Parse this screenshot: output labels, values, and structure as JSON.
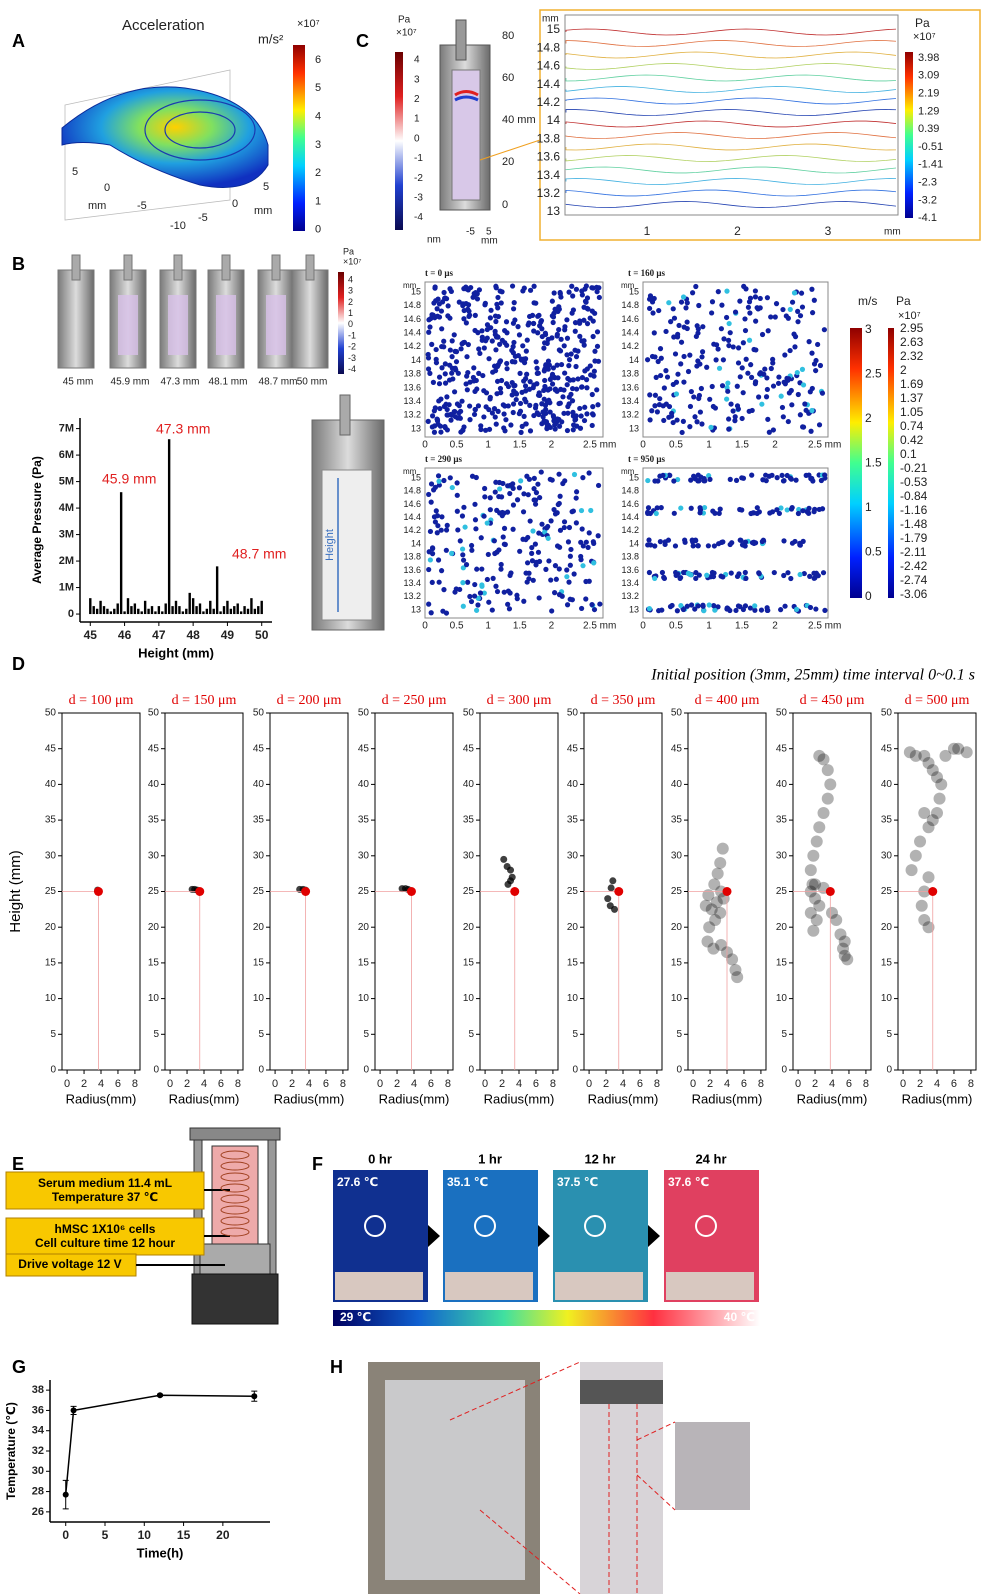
{
  "panel_labels": [
    "A",
    "B",
    "C",
    "D",
    "E",
    "F",
    "G",
    "H"
  ],
  "panel_a": {
    "title": "Acceleration",
    "unit": "m/s²",
    "scale": "×10⁷",
    "colorbar_ticks": [
      6,
      5,
      4,
      3,
      2,
      1,
      0
    ],
    "axis_labels": [
      "5",
      "0",
      "-5",
      "mm",
      "-10",
      "-5",
      "0",
      "5",
      "mm"
    ]
  },
  "panel_b": {
    "positions": [
      "45 mm",
      "45.9 mm",
      "47.3 mm",
      "48.1 mm",
      "48.7 mm",
      "50 mm"
    ],
    "cb_unit": "Pa",
    "cb_scale": "×10⁷",
    "cb_ticks": [
      4,
      3,
      2,
      1,
      0,
      -1,
      -2,
      -3,
      -4
    ],
    "diagram_label": "Height",
    "snapshot_times": [
      "t = 0 μs",
      "t = 160 μs",
      "t = 290 μs",
      "t = 950 μs"
    ],
    "snapshot_yunit": "mm",
    "snapshot_yticks": [
      15,
      14.8,
      14.6,
      14.4,
      14.2,
      14,
      13.8,
      13.6,
      13.4,
      13.2,
      13
    ],
    "snapshot_xticks": [
      0,
      0.5,
      1,
      1.5,
      2,
      "2.5 mm"
    ],
    "velocity_unit": "m/s",
    "velocity_ticks": [
      3,
      2.5,
      2,
      1.5,
      1,
      0.5,
      0
    ],
    "pressure_unit": "Pa",
    "pressure_scale": "×10⁷",
    "pressure_ticks": [
      2.95,
      2.63,
      2.32,
      2,
      1.69,
      1.37,
      1.05,
      0.74,
      0.42,
      0.1,
      -0.21,
      -0.53,
      -0.84,
      -1.16,
      -1.48,
      -1.79,
      -2.11,
      -2.42,
      -2.74,
      -3.06
    ]
  },
  "panel_c": {
    "unit": "Pa",
    "scale": "×10⁷",
    "colorbar_ticks": [
      4,
      3,
      2,
      1,
      0,
      -1,
      -2,
      -3,
      -4
    ],
    "height_ticks": [
      80,
      60,
      "40 mm",
      20,
      0
    ],
    "base_labels": [
      "nm",
      "-5",
      "5",
      "mm"
    ],
    "contour_yunit": "mm",
    "contour_yticks": [
      15,
      14.8,
      14.6,
      14.4,
      14.2,
      14,
      13.8,
      13.6,
      13.4,
      13.2,
      13
    ],
    "contour_xticks": [
      1,
      2,
      3
    ],
    "contour_xunit": "mm",
    "contour_cb_unit": "Pa",
    "contour_cb_scale": "×10⁷",
    "contour_cb_ticks": [
      3.98,
      3.09,
      2.19,
      1.29,
      0.39,
      -0.51,
      -1.41,
      -2.3,
      -3.2,
      -4.1
    ]
  },
  "panel_d": {
    "note": "Initial position (3mm, 25mm)  time interval 0~0.1 s"
  },
  "panel_e": {
    "labels": [
      "Serum medium 11.4 mL",
      "Temperature 37 ℃",
      "hMSC 1X10⁶ cells",
      "Cell culture time 12 hour",
      "Drive voltage 12 V"
    ]
  },
  "panel_f": {
    "times": [
      "0 hr",
      "1 hr",
      "12 hr",
      "24 hr"
    ],
    "temperatures": [
      "27.6 ℃",
      "35.1 ℃",
      "37.5 ℃",
      "37.6 ℃"
    ],
    "scale_min": "29 ℃",
    "scale_max": "40 ℃"
  },
  "chart_data": [
    {
      "type": "bar",
      "xlabel": "Height (mm)",
      "ylabel": "Average Pressure (Pa)",
      "color": "#000000",
      "x": [
        45.0,
        45.1,
        45.2,
        45.3,
        45.4,
        45.5,
        45.6,
        45.7,
        45.8,
        45.9,
        46.0,
        46.1,
        46.2,
        46.3,
        46.4,
        46.5,
        46.6,
        46.7,
        46.8,
        46.9,
        47.0,
        47.1,
        47.2,
        47.3,
        47.4,
        47.5,
        47.6,
        47.7,
        47.8,
        47.9,
        48.0,
        48.1,
        48.2,
        48.3,
        48.4,
        48.5,
        48.6,
        48.7,
        48.8,
        48.9,
        49.0,
        49.1,
        49.2,
        49.3,
        49.4,
        49.5,
        49.6,
        49.7,
        49.8,
        49.9,
        50.0
      ],
      "values": [
        600000,
        300000,
        200000,
        500000,
        300000,
        200000,
        100000,
        200000,
        400000,
        4600000,
        100000,
        600000,
        300000,
        400000,
        200000,
        100000,
        500000,
        200000,
        300000,
        100000,
        300000,
        100000,
        400000,
        6600000,
        300000,
        500000,
        300000,
        100000,
        200000,
        800000,
        600000,
        300000,
        400000,
        100000,
        200000,
        500000,
        200000,
        1800000,
        100000,
        300000,
        500000,
        200000,
        300000,
        400000,
        100000,
        300000,
        200000,
        600000,
        200000,
        300000,
        500000
      ],
      "xlim": [
        44.7,
        50.3
      ],
      "xticks": [
        45,
        46,
        47,
        48,
        49,
        50
      ],
      "ylim": [
        -300000,
        7400000
      ],
      "yticks": [
        0,
        {
          "value": 1000000,
          "label": "1M"
        },
        {
          "value": 2000000,
          "label": "2M"
        },
        {
          "value": 3000000,
          "label": "3M"
        },
        {
          "value": 4000000,
          "label": "4M"
        },
        {
          "value": 5000000,
          "label": "5M"
        },
        {
          "value": 6000000,
          "label": "6M"
        },
        {
          "value": 7000000,
          "label": "7M"
        }
      ],
      "annotations": [
        "45.9 mm",
        "47.3 mm",
        "48.7 mm"
      ],
      "annotation_color": "#e02020"
    },
    {
      "type": "scatter",
      "title": "d = 100 μm",
      "ylabel": "Height (mm)",
      "xlabel": "Radius(mm)",
      "xlim": [
        -0.6,
        8.6
      ],
      "xticks": [
        0,
        2,
        4,
        6,
        8
      ],
      "ylim": [
        0,
        50
      ],
      "yticks": [
        0,
        5,
        10,
        15,
        20,
        25,
        30,
        35,
        40,
        45,
        50
      ],
      "series": [
        {
          "color": "#000000",
          "x": [
            3.6
          ],
          "values": [
            25.2
          ]
        },
        {
          "color": "#e00000",
          "x": [
            3.7
          ],
          "values": [
            25
          ]
        }
      ]
    },
    {
      "type": "scatter",
      "title": "d = 150 μm",
      "xlabel": "Radius(mm)",
      "xlim": [
        -0.6,
        8.6
      ],
      "xticks": [
        0,
        2,
        4,
        6,
        8
      ],
      "ylim": [
        0,
        50
      ],
      "yticks": [
        0,
        5,
        10,
        15,
        20,
        25,
        30,
        35,
        40,
        45,
        50
      ],
      "series": [
        {
          "color": "#000000",
          "x": [
            2.6,
            2.9,
            3.2
          ],
          "values": [
            25.3,
            25.3,
            25.2
          ]
        },
        {
          "color": "#e00000",
          "x": [
            3.5
          ],
          "values": [
            25
          ]
        }
      ]
    },
    {
      "type": "scatter",
      "title": "d = 200 μm",
      "xlabel": "Radius(mm)",
      "xlim": [
        -0.6,
        8.6
      ],
      "xticks": [
        0,
        2,
        4,
        6,
        8
      ],
      "ylim": [
        0,
        50
      ],
      "yticks": [
        0,
        5,
        10,
        15,
        20,
        25,
        30,
        35,
        40,
        45,
        50
      ],
      "series": [
        {
          "color": "#000000",
          "x": [
            2.9,
            3.3,
            3.6
          ],
          "values": [
            25.3,
            25.3,
            25.2
          ]
        },
        {
          "color": "#e00000",
          "x": [
            3.6
          ],
          "values": [
            25
          ]
        }
      ]
    },
    {
      "type": "scatter",
      "title": "d = 250 μm",
      "xlabel": "Radius(mm)",
      "xlim": [
        -0.6,
        8.6
      ],
      "xticks": [
        0,
        2,
        4,
        6,
        8
      ],
      "ylim": [
        0,
        50
      ],
      "yticks": [
        0,
        5,
        10,
        15,
        20,
        25,
        30,
        35,
        40,
        45,
        50
      ],
      "series": [
        {
          "color": "#000000",
          "x": [
            2.6,
            3.0,
            3.3
          ],
          "values": [
            25.4,
            25.4,
            25.3
          ]
        },
        {
          "color": "#e00000",
          "x": [
            3.7
          ],
          "values": [
            25
          ]
        }
      ]
    },
    {
      "type": "scatter",
      "title": "d = 300 μm",
      "xlabel": "Radius(mm)",
      "xlim": [
        -0.6,
        8.6
      ],
      "xticks": [
        0,
        2,
        4,
        6,
        8
      ],
      "ylim": [
        0,
        50
      ],
      "yticks": [
        0,
        5,
        10,
        15,
        20,
        25,
        30,
        35,
        40,
        45,
        50
      ],
      "series": [
        {
          "color": "#000000",
          "x": [
            2.2,
            2.6,
            3.0,
            3.2,
            3.0,
            2.7
          ],
          "values": [
            29.5,
            28.5,
            28.0,
            27.0,
            26.5,
            26.0
          ]
        },
        {
          "color": "#e00000",
          "x": [
            3.5
          ],
          "values": [
            25
          ]
        }
      ]
    },
    {
      "type": "scatter",
      "title": "d = 350 μm",
      "xlabel": "Radius(mm)",
      "xlim": [
        -0.6,
        8.6
      ],
      "xticks": [
        0,
        2,
        4,
        6,
        8
      ],
      "ylim": [
        0,
        50
      ],
      "yticks": [
        0,
        5,
        10,
        15,
        20,
        25,
        30,
        35,
        40,
        45,
        50
      ],
      "series": [
        {
          "color": "#000000",
          "x": [
            2.8,
            2.6,
            2.2,
            2.5,
            3.0
          ],
          "values": [
            26.5,
            25.5,
            24.0,
            23.0,
            22.5
          ]
        },
        {
          "color": "#e00000",
          "x": [
            3.5
          ],
          "values": [
            25
          ]
        }
      ]
    },
    {
      "type": "scatter",
      "title": "d = 400 μm",
      "xlabel": "Radius(mm)",
      "xlim": [
        -0.6,
        8.6
      ],
      "xticks": [
        0,
        2,
        4,
        6,
        8
      ],
      "ylim": [
        0,
        50
      ],
      "yticks": [
        0,
        5,
        10,
        15,
        20,
        25,
        30,
        35,
        40,
        45,
        50
      ],
      "series": [
        {
          "color": "#000000",
          "x": [
            3.5,
            3.2,
            2.9,
            2.5,
            1.8,
            1.5,
            2.2,
            2.8,
            3.3,
            3.6,
            3.2,
            2.6,
            1.9,
            1.7,
            2.4,
            3.3,
            4.0,
            4.6,
            5.0,
            5.2
          ],
          "values": [
            31,
            29,
            27.5,
            26,
            24.5,
            23,
            22.5,
            23.5,
            25,
            24,
            22,
            21,
            20,
            18,
            17,
            17.5,
            16.5,
            15.5,
            14,
            13
          ]
        },
        {
          "color": "#e00000",
          "x": [
            4.0
          ],
          "values": [
            25
          ]
        }
      ]
    },
    {
      "type": "scatter",
      "title": "d = 450 μm",
      "xlabel": "Radius(mm)",
      "xlim": [
        -0.6,
        8.6
      ],
      "xticks": [
        0,
        2,
        4,
        6,
        8
      ],
      "ylim": [
        0,
        50
      ],
      "yticks": [
        0,
        5,
        10,
        15,
        20,
        25,
        30,
        35,
        40,
        45,
        50
      ],
      "series": [
        {
          "color": "#000000",
          "x": [
            2.5,
            3,
            3.5,
            3.8,
            3.5,
            3,
            2.5,
            2.2,
            1.8,
            1.5,
            1.7,
            2,
            2.5,
            2.2,
            1.8,
            1.5,
            1.5,
            2,
            3,
            4,
            4.5,
            5,
            5.5,
            5.3,
            5.5,
            5.8
          ],
          "values": [
            44,
            43.5,
            42,
            40,
            38,
            36,
            34,
            32,
            30,
            28,
            26,
            24,
            23,
            21,
            19.5,
            22,
            25,
            26,
            25.5,
            22,
            21,
            19,
            18,
            17,
            16,
            15.5
          ]
        },
        {
          "color": "#e00000",
          "x": [
            3.8
          ],
          "values": [
            25
          ]
        }
      ]
    },
    {
      "type": "scatter",
      "title": "d = 500 μm",
      "xlabel": "Radius(mm)",
      "xlim": [
        -0.6,
        8.6
      ],
      "xticks": [
        0,
        2,
        4,
        6,
        8
      ],
      "ylim": [
        0,
        50
      ],
      "yticks": [
        0,
        5,
        10,
        15,
        20,
        25,
        30,
        35,
        40,
        45,
        50
      ],
      "series": [
        {
          "color": "#000000",
          "x": [
            0.8,
            1.5,
            2.5,
            3,
            3.5,
            4,
            4.5,
            4.3,
            4,
            3.5,
            3,
            2.5,
            2,
            1.5,
            1,
            3,
            2.5,
            2.2,
            2.5,
            3,
            5,
            6,
            6.5,
            7.5
          ],
          "values": [
            44.5,
            44,
            44,
            43,
            42,
            41,
            40,
            38,
            36,
            35,
            34,
            36,
            32,
            30,
            28,
            27,
            25,
            23,
            21,
            20,
            44,
            45,
            45,
            44.5
          ]
        },
        {
          "color": "#e00000",
          "x": [
            3.5
          ],
          "values": [
            25
          ]
        }
      ]
    },
    {
      "type": "line",
      "xlabel": "Time(h)",
      "ylabel": "Temperature (℃)",
      "color": "#000000",
      "x": [
        0,
        1,
        12,
        24
      ],
      "values": [
        27.7,
        36.0,
        37.5,
        37.4
      ],
      "errors": [
        1.4,
        0.4,
        0.1,
        0.5
      ],
      "xlim": [
        -2,
        26
      ],
      "xticks": [
        0,
        5,
        10,
        15,
        20
      ],
      "ylim": [
        25,
        39
      ],
      "yticks": [
        26,
        28,
        30,
        32,
        34,
        36,
        38
      ]
    }
  ]
}
